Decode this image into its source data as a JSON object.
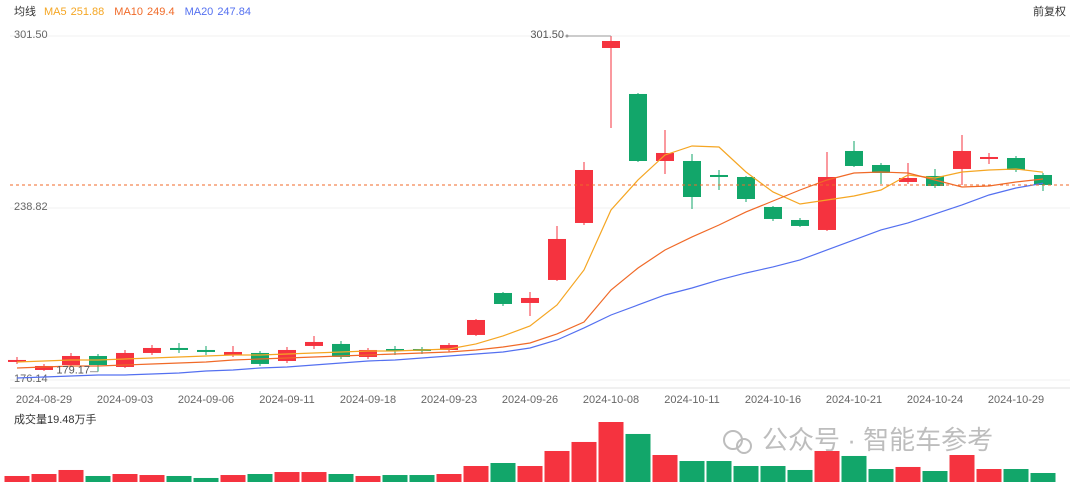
{
  "chart_data": {
    "type": "candlestick",
    "legend_title": "均线",
    "adjust_label": "前复权",
    "volume_label": "成交量19.48万手",
    "watermark": "公众号 · 智能车参考",
    "annotations": {
      "max": "301.50",
      "min": "179.17"
    },
    "categories": [
      null,
      "2024-08-29",
      null,
      null,
      "2024-09-03",
      null,
      null,
      "2024-09-06",
      null,
      null,
      "2024-09-11",
      null,
      null,
      "2024-09-18",
      null,
      null,
      "2024-09-23",
      null,
      null,
      "2024-09-26",
      null,
      null,
      "2024-10-08",
      null,
      null,
      "2024-10-11",
      null,
      null,
      "2024-10-16",
      null,
      null,
      "2024-10-21",
      null,
      null,
      "2024-10-24",
      null,
      null,
      "2024-10-29",
      null
    ],
    "open": [
      182.71,
      179.79,
      181.61,
      184.89,
      180.89,
      185.99,
      187.81,
      187.08,
      185.26,
      185.99,
      183.07,
      188.54,
      189.27,
      184.53,
      187.44,
      187.44,
      187.08,
      192.55,
      207.85,
      204.21,
      212.59,
      233.36,
      297.13,
      280.37,
      255.95,
      255.95,
      250.85,
      250.12,
      239.19,
      234.45,
      230.81,
      259.6,
      254.49,
      248.3,
      250.49,
      253.04,
      256.68,
      257.04,
      250.85
    ],
    "high": [
      184.53,
      181.98,
      185.99,
      185.62,
      187.08,
      188.9,
      189.63,
      188.54,
      188.54,
      186.72,
      188.17,
      192.18,
      190.36,
      187.81,
      188.54,
      188.17,
      189.63,
      198.38,
      208.22,
      208.22,
      232.27,
      255.59,
      301.5,
      280.73,
      267.25,
      258.5,
      252.67,
      250.49,
      239.55,
      235.18,
      259.23,
      263.24,
      255.22,
      255.22,
      253.04,
      265.43,
      258.87,
      257.77,
      251.58
    ],
    "low": [
      181.98,
      179.43,
      180.89,
      179.17,
      180.52,
      185.26,
      185.99,
      185.26,
      184.53,
      181.25,
      182.34,
      187.44,
      183.8,
      183.8,
      185.26,
      185.62,
      186.35,
      192.18,
      203.11,
      199.47,
      212.22,
      232.63,
      267.98,
      255.59,
      251.21,
      238.46,
      245.38,
      241.01,
      234.09,
      231.9,
      230.44,
      253.77,
      247.57,
      247.57,
      246.11,
      247.21,
      254.86,
      251.94,
      245.02
    ],
    "close": [
      183.44,
      181.25,
      184.89,
      181.61,
      185.99,
      187.81,
      187.08,
      186.35,
      186.35,
      181.98,
      187.08,
      190.0,
      184.53,
      187.08,
      186.72,
      186.72,
      188.9,
      198.01,
      203.84,
      206.03,
      227.53,
      252.67,
      299.68,
      255.95,
      258.87,
      242.83,
      250.12,
      242.1,
      234.82,
      232.27,
      250.12,
      254.13,
      251.58,
      249.76,
      246.84,
      259.6,
      257.41,
      252.67,
      247.21
    ],
    "volume": [
      13.0,
      17.3,
      26.0,
      13.0,
      17.3,
      15.1,
      13.0,
      8.7,
      15.1,
      17.3,
      21.6,
      21.6,
      17.3,
      13.0,
      15.1,
      15.1,
      17.3,
      34.6,
      41.1,
      34.6,
      67.1,
      86.6,
      129.8,
      103.9,
      58.4,
      45.4,
      45.4,
      34.6,
      34.6,
      26.0,
      67.1,
      56.3,
      28.1,
      32.5,
      23.8,
      58.4,
      28.1,
      28.1,
      19.48
    ],
    "up_color": "#f5333f",
    "down_color": "#12a66a",
    "price_line_color": "#f06a28",
    "series": [
      {
        "name": "MA5",
        "color": "#f5a623",
        "values": [
          182.71,
          183.07,
          183.44,
          183.44,
          183.8,
          184.17,
          184.53,
          184.89,
          185.26,
          185.26,
          185.62,
          185.99,
          186.35,
          186.72,
          186.72,
          187.08,
          187.44,
          189.27,
          192.18,
          195.82,
          203.48,
          216.23,
          238.1,
          249.03,
          258.14,
          261.42,
          261.05,
          251.94,
          244.66,
          240.28,
          241.74,
          243.2,
          245.38,
          250.85,
          249.76,
          251.94,
          252.67,
          253.04,
          251.88
        ]
      },
      {
        "name": "MA10",
        "color": "#f06a28",
        "values": [
          180.52,
          180.89,
          181.25,
          181.25,
          181.61,
          181.98,
          182.34,
          182.71,
          183.44,
          183.8,
          184.17,
          184.53,
          184.89,
          185.26,
          185.62,
          185.99,
          186.35,
          187.08,
          188.17,
          189.63,
          192.91,
          197.28,
          208.94,
          216.96,
          223.52,
          228.26,
          232.63,
          237.37,
          241.37,
          245.38,
          249.03,
          251.58,
          251.94,
          251.58,
          249.03,
          246.48,
          246.84,
          248.3,
          249.4
        ]
      },
      {
        "name": "MA20",
        "color": "#5470f0",
        "values": [
          176.88,
          177.24,
          177.61,
          177.97,
          177.97,
          178.33,
          178.7,
          179.43,
          179.79,
          180.52,
          180.89,
          181.61,
          182.34,
          183.07,
          183.44,
          184.17,
          184.89,
          185.62,
          186.35,
          187.81,
          190.72,
          195.1,
          199.83,
          203.48,
          207.12,
          209.67,
          212.59,
          215.14,
          217.33,
          219.88,
          223.52,
          227.16,
          230.81,
          233.36,
          236.64,
          239.92,
          243.56,
          246.11,
          247.84
        ]
      }
    ],
    "ylim": [
      176.14,
      301.5
    ],
    "yticks": [
      {
        "value": 301.5,
        "label": "301.50"
      },
      238.82,
      176.14
    ],
    "grid": true
  }
}
